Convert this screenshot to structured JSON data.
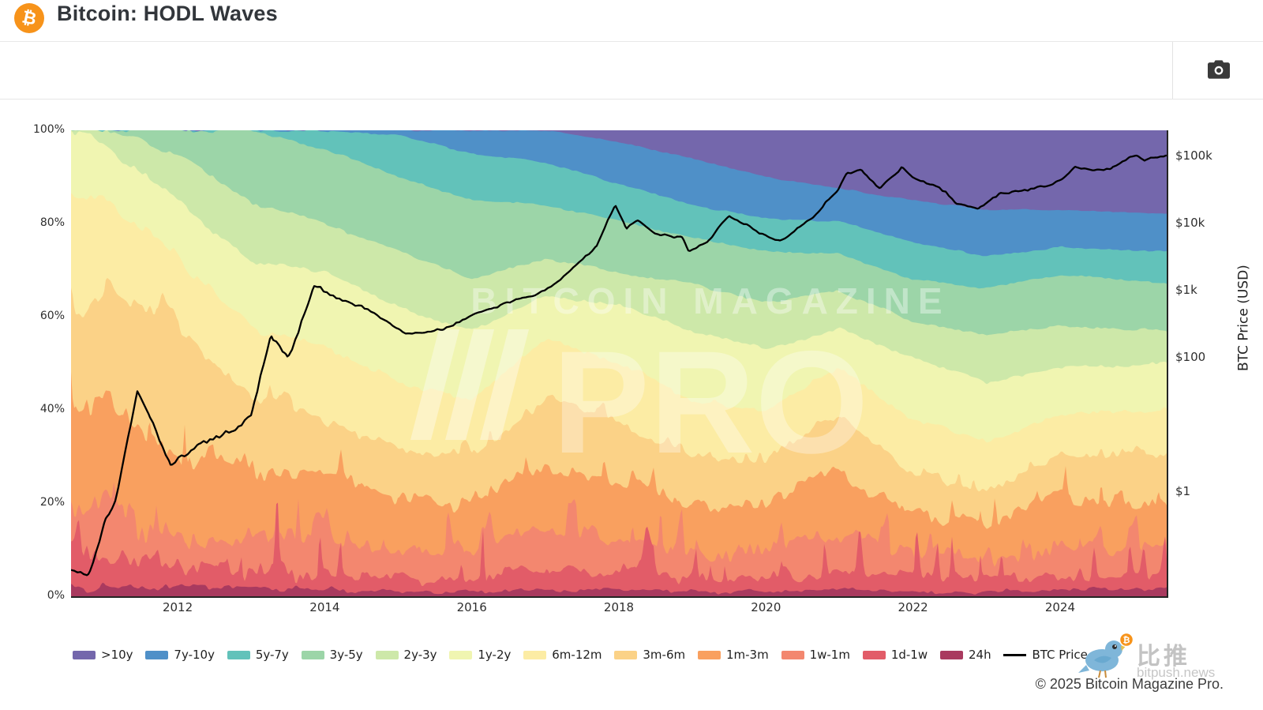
{
  "header": {
    "title": "Bitcoin: HODL Waves",
    "brand_glyph": "₿"
  },
  "toolbar": {
    "camera_tooltip": "Download plot as a png"
  },
  "watermark": {
    "line1": "BITCOIN MAGAZINE",
    "line2": "PRO"
  },
  "footer": {
    "copyright": "© 2025 Bitcoin Magazine Pro.",
    "bitpush_cn": "比推",
    "bitpush_domain": "bitpush.news",
    "coin_glyph": "₿"
  },
  "chart_data": {
    "type": "area",
    "title": "Bitcoin: HODL Waves",
    "stacking": "percent",
    "grid": false,
    "legend_position": "bottom",
    "x_years": [
      2010.55,
      2011,
      2012,
      2013,
      2014,
      2015,
      2016,
      2017,
      2018,
      2019,
      2020,
      2021,
      2022,
      2023,
      2024,
      2025.45
    ],
    "series": [
      {
        "name": "24h",
        "color": "#a93a5f",
        "values": [
          2,
          2,
          1.5,
          1.5,
          1.5,
          1,
          1,
          1.5,
          1.5,
          1,
          1,
          1.5,
          1,
          1,
          1.5,
          1.5
        ]
      },
      {
        "name": "1d-1w",
        "color": "#e25c68",
        "values": [
          6,
          6,
          4.5,
          4,
          3.5,
          3,
          3,
          4,
          4,
          3,
          3,
          4,
          3,
          2.5,
          3.5,
          3.5
        ]
      },
      {
        "name": "1w-1m",
        "color": "#f3876f",
        "values": [
          10,
          12,
          5,
          6,
          7,
          6,
          6,
          8,
          7,
          6,
          6,
          8,
          5,
          4.5,
          6,
          6
        ]
      },
      {
        "name": "1m-3m",
        "color": "#f9a05f",
        "values": [
          20,
          25,
          18,
          16,
          14,
          11,
          10,
          15,
          12,
          10,
          10,
          14,
          8,
          7,
          10,
          9
        ]
      },
      {
        "name": "3m-6m",
        "color": "#fbd287",
        "values": [
          22,
          20,
          29,
          16,
          12,
          11,
          10,
          14,
          13,
          10,
          9,
          12,
          9,
          8,
          9,
          10
        ]
      },
      {
        "name": "6m-12m",
        "color": "#fceca4",
        "values": [
          25,
          20,
          15,
          14,
          16,
          14,
          12,
          13,
          13,
          12,
          11,
          10,
          12,
          10,
          9,
          10
        ]
      },
      {
        "name": "1y-2y",
        "color": "#f0f5b1",
        "values": [
          15,
          12,
          12,
          14,
          16,
          16,
          15,
          9,
          12,
          15,
          13,
          8,
          13,
          13,
          10,
          10
        ]
      },
      {
        "name": "2y-3y",
        "color": "#cde8a9",
        "values": [
          0,
          3,
          10,
          13,
          10,
          12,
          11,
          8,
          7,
          10,
          10,
          8,
          8,
          10,
          9,
          7
        ]
      },
      {
        "name": "3y-5y",
        "color": "#9cd5a8",
        "values": [
          0,
          0,
          5,
          15.5,
          16,
          16,
          17,
          11.5,
          11,
          10,
          11,
          8,
          9,
          10,
          11,
          10
        ]
      },
      {
        "name": "5y-7y",
        "color": "#62c2ba",
        "values": [
          0,
          0,
          0,
          0,
          4,
          9,
          10,
          9,
          8,
          7,
          7,
          7,
          8,
          7,
          6,
          7
        ]
      },
      {
        "name": "7y-10y",
        "color": "#4f90c8",
        "values": [
          0,
          0,
          0,
          0,
          0,
          1,
          5,
          7,
          9,
          10,
          9,
          7,
          9,
          10,
          8,
          8
        ]
      },
      {
        "name": ">10y",
        "color": "#7467ac",
        "values": [
          0,
          0,
          0,
          0,
          0,
          0,
          0,
          0,
          2.5,
          6,
          10,
          12.5,
          15,
          17,
          17,
          18
        ]
      }
    ],
    "price_line": {
      "name": "BTC Price",
      "color": "#000000",
      "points": [
        [
          2010.55,
          0.07
        ],
        [
          2010.8,
          0.06
        ],
        [
          2011.0,
          0.3
        ],
        [
          2011.15,
          0.75
        ],
        [
          2011.45,
          29
        ],
        [
          2011.6,
          14
        ],
        [
          2011.9,
          2.3
        ],
        [
          2012.3,
          5
        ],
        [
          2012.6,
          6.5
        ],
        [
          2013.0,
          13
        ],
        [
          2013.27,
          230
        ],
        [
          2013.5,
          95
        ],
        [
          2013.85,
          1100
        ],
        [
          2014.1,
          800
        ],
        [
          2014.5,
          580
        ],
        [
          2014.9,
          320
        ],
        [
          2015.1,
          210
        ],
        [
          2015.6,
          250
        ],
        [
          2016.0,
          430
        ],
        [
          2016.5,
          660
        ],
        [
          2017.0,
          980
        ],
        [
          2017.45,
          2500
        ],
        [
          2017.7,
          4300
        ],
        [
          2017.95,
          19000
        ],
        [
          2018.1,
          8000
        ],
        [
          2018.25,
          11000
        ],
        [
          2018.55,
          6400
        ],
        [
          2018.85,
          6400
        ],
        [
          2018.95,
          3700
        ],
        [
          2019.2,
          5200
        ],
        [
          2019.5,
          12500
        ],
        [
          2019.9,
          7200
        ],
        [
          2020.2,
          5300
        ],
        [
          2020.6,
          11500
        ],
        [
          2020.95,
          28000
        ],
        [
          2021.1,
          55000
        ],
        [
          2021.3,
          63000
        ],
        [
          2021.55,
          31000
        ],
        [
          2021.85,
          67000
        ],
        [
          2022.0,
          47000
        ],
        [
          2022.2,
          38000
        ],
        [
          2022.45,
          29000
        ],
        [
          2022.6,
          19000
        ],
        [
          2022.9,
          16000
        ],
        [
          2023.2,
          28000
        ],
        [
          2023.5,
          30000
        ],
        [
          2023.8,
          35000
        ],
        [
          2024.0,
          44000
        ],
        [
          2024.2,
          70000
        ],
        [
          2024.45,
          58000
        ],
        [
          2024.7,
          64000
        ],
        [
          2024.95,
          98000
        ],
        [
          2025.05,
          102000
        ],
        [
          2025.15,
          85000
        ],
        [
          2025.3,
          95000
        ],
        [
          2025.42,
          100000
        ]
      ]
    },
    "x_axis": {
      "range": [
        2010.55,
        2025.45
      ],
      "ticks": [
        2012,
        2014,
        2016,
        2018,
        2020,
        2022,
        2024
      ]
    },
    "y_axis_left": {
      "range": [
        0,
        100
      ],
      "ticks": [
        {
          "label": "100%",
          "value": 100
        },
        {
          "label": "80%",
          "value": 80
        },
        {
          "label": "60%",
          "value": 60
        },
        {
          "label": "40%",
          "value": 40
        },
        {
          "label": "20%",
          "value": 20
        },
        {
          "label": "0%",
          "value": 0
        }
      ]
    },
    "y_axis_right": {
      "title": "BTC Price (USD)",
      "scale": "log",
      "ticks": [
        {
          "label": "$100k",
          "value": 100000
        },
        {
          "label": "$10k",
          "value": 10000
        },
        {
          "label": "$1k",
          "value": 1000
        },
        {
          "label": "$100",
          "value": 100
        },
        {
          "label": "$1",
          "value": 1
        }
      ]
    }
  }
}
